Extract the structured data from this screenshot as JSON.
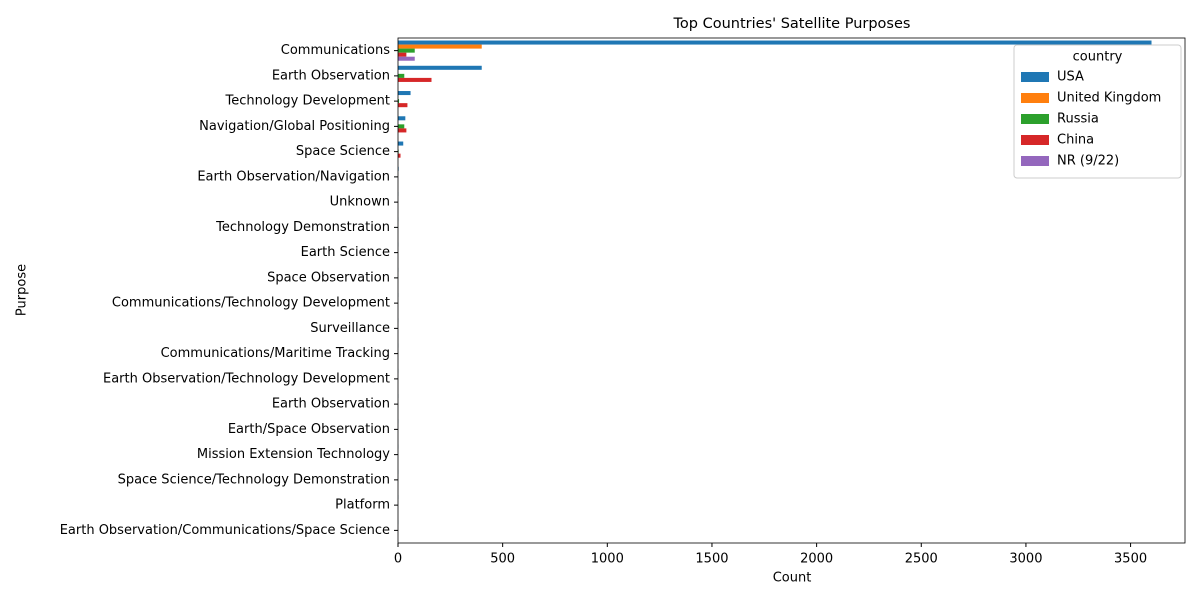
{
  "chart_data": {
    "type": "bar",
    "orientation": "horizontal",
    "title": "Top Countries' Satellite Purposes",
    "xlabel": "Count",
    "ylabel": "Purpose",
    "legend_title": "country",
    "legend_loc": "upper right",
    "categories": [
      "Communications",
      "Earth Observation",
      "Technology Development",
      "Navigation/Global Positioning",
      "Space Science",
      "Earth Observation/Navigation",
      "Unknown",
      "Technology Demonstration",
      "Earth Science",
      "Space Observation",
      "Communications/Technology Development",
      "Surveillance",
      "Communications/Maritime Tracking",
      "Earth Observation/Technology Development",
      "Earth Observation ",
      "Earth/Space Observation",
      "Mission Extension Technology",
      "Space Science/Technology Demonstration",
      "Platform",
      "Earth Observation/Communications/Space Science"
    ],
    "series": [
      {
        "name": "USA",
        "color": "#1f77b4",
        "values": [
          3600,
          400,
          60,
          35,
          25,
          3,
          1,
          1,
          1,
          1,
          1,
          1,
          1,
          1,
          1,
          1,
          1,
          1,
          1,
          1
        ]
      },
      {
        "name": "United Kingdom",
        "color": "#ff7f0e",
        "values": [
          400,
          0,
          0,
          0,
          0,
          0,
          0,
          0,
          0,
          0,
          0,
          0,
          0,
          0,
          0,
          0,
          0,
          0,
          0,
          0
        ]
      },
      {
        "name": "Russia",
        "color": "#2ca02c",
        "values": [
          80,
          30,
          5,
          30,
          3,
          0,
          0,
          0,
          0,
          0,
          0,
          0,
          0,
          0,
          0,
          0,
          0,
          0,
          0,
          0
        ]
      },
      {
        "name": "China",
        "color": "#d62728",
        "values": [
          40,
          160,
          45,
          40,
          12,
          0,
          0,
          0,
          0,
          0,
          0,
          0,
          0,
          0,
          0,
          0,
          0,
          0,
          0,
          0
        ]
      },
      {
        "name": "NR (9/22)",
        "color": "#9467bd",
        "values": [
          80,
          0,
          0,
          0,
          0,
          0,
          0,
          0,
          0,
          0,
          0,
          0,
          0,
          0,
          0,
          0,
          0,
          0,
          0,
          0
        ]
      }
    ],
    "xlim": [
      0,
      3760
    ],
    "xticks": [
      0,
      500,
      1000,
      1500,
      2000,
      2500,
      3000,
      3500
    ]
  }
}
